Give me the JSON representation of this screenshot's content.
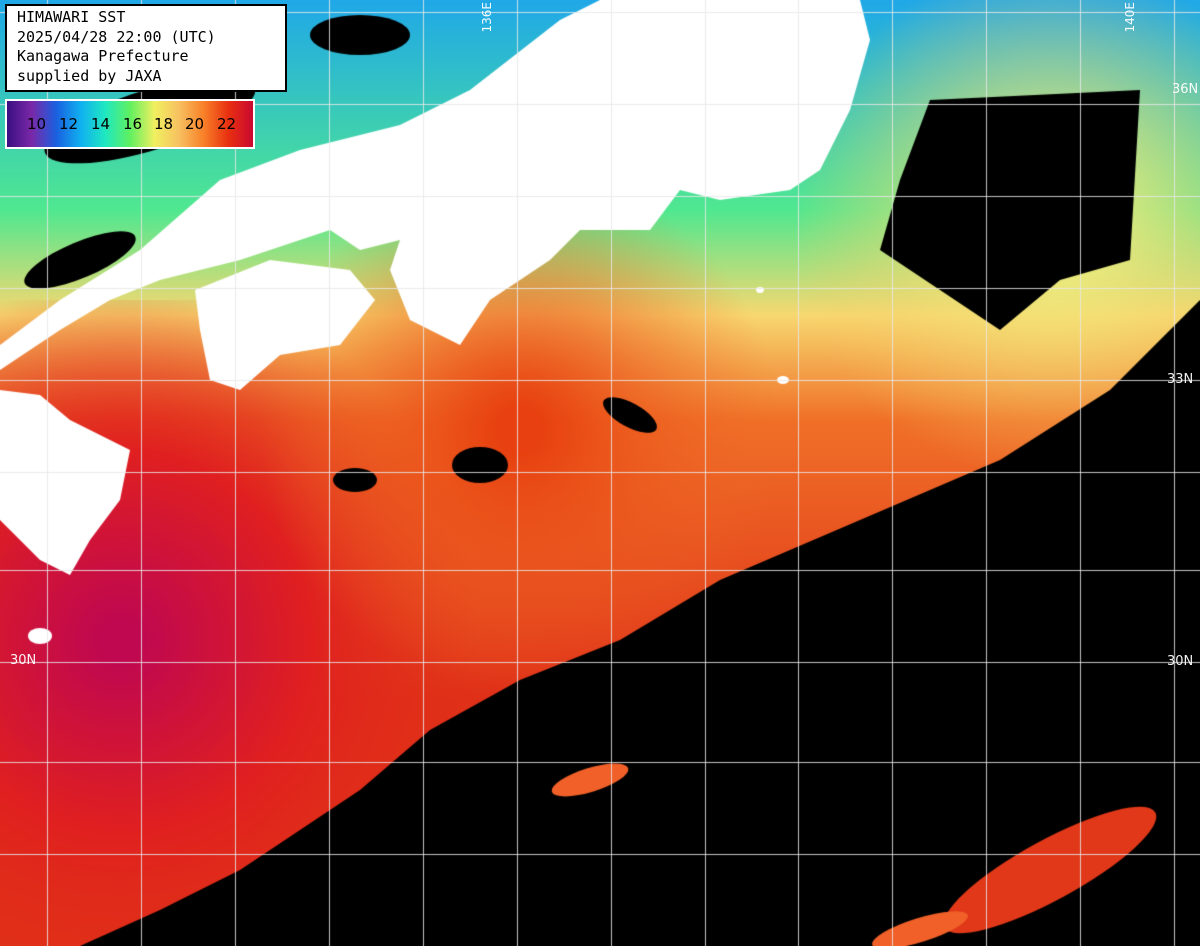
{
  "info": {
    "title": "HIMAWARI SST",
    "datetime": "2025/04/28 22:00 (UTC)",
    "org": "Kanagawa Prefecture",
    "credit": "supplied by JAXA"
  },
  "legend": {
    "labels": [
      "10",
      "12",
      "14",
      "16",
      "18",
      "20",
      "22"
    ],
    "colors": [
      "#3a1080",
      "#7a28a8",
      "#1a60e0",
      "#10b0f0",
      "#20e8c0",
      "#60f060",
      "#f0f060",
      "#f8c060",
      "#f88028",
      "#e83010",
      "#c80830"
    ]
  },
  "grid_labels": {
    "lat_33n": "33N",
    "lat_30n": "30N",
    "lat_30n_right": "30N",
    "lon_136e": "136E",
    "lon_140e": "140E",
    "lat_36n": "36N"
  },
  "colors": {
    "land": "#ffffff",
    "missing": "#000000",
    "grid": "#e8e8e8"
  }
}
